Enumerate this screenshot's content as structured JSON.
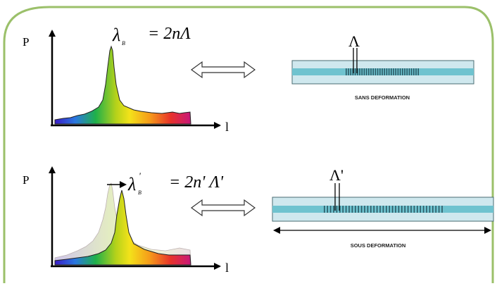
{
  "colors": {
    "frame": "#9bc06a",
    "fiber_fill": "#cfe8ee",
    "fiber_core": "#6fc3cf",
    "grating": "#2a5a66",
    "axis": "#000000"
  },
  "top_panel": {
    "axis_y_label": "P",
    "axis_x_label": "l",
    "formula_lambda": "λ",
    "formula_sub": "B",
    "formula_rhs": "= 2nΛ",
    "grating_label": "Λ",
    "caption": "SANS DEFORMATION"
  },
  "bottom_panel": {
    "axis_y_label": "P",
    "axis_x_label": "l",
    "formula_lambda": "λ",
    "formula_sub": "B",
    "formula_prime": "'",
    "formula_rhs": "= 2n' Λ'",
    "shift_arrow": "→",
    "grating_label": "Λ'",
    "caption": "SOUS DEFORMATION"
  }
}
